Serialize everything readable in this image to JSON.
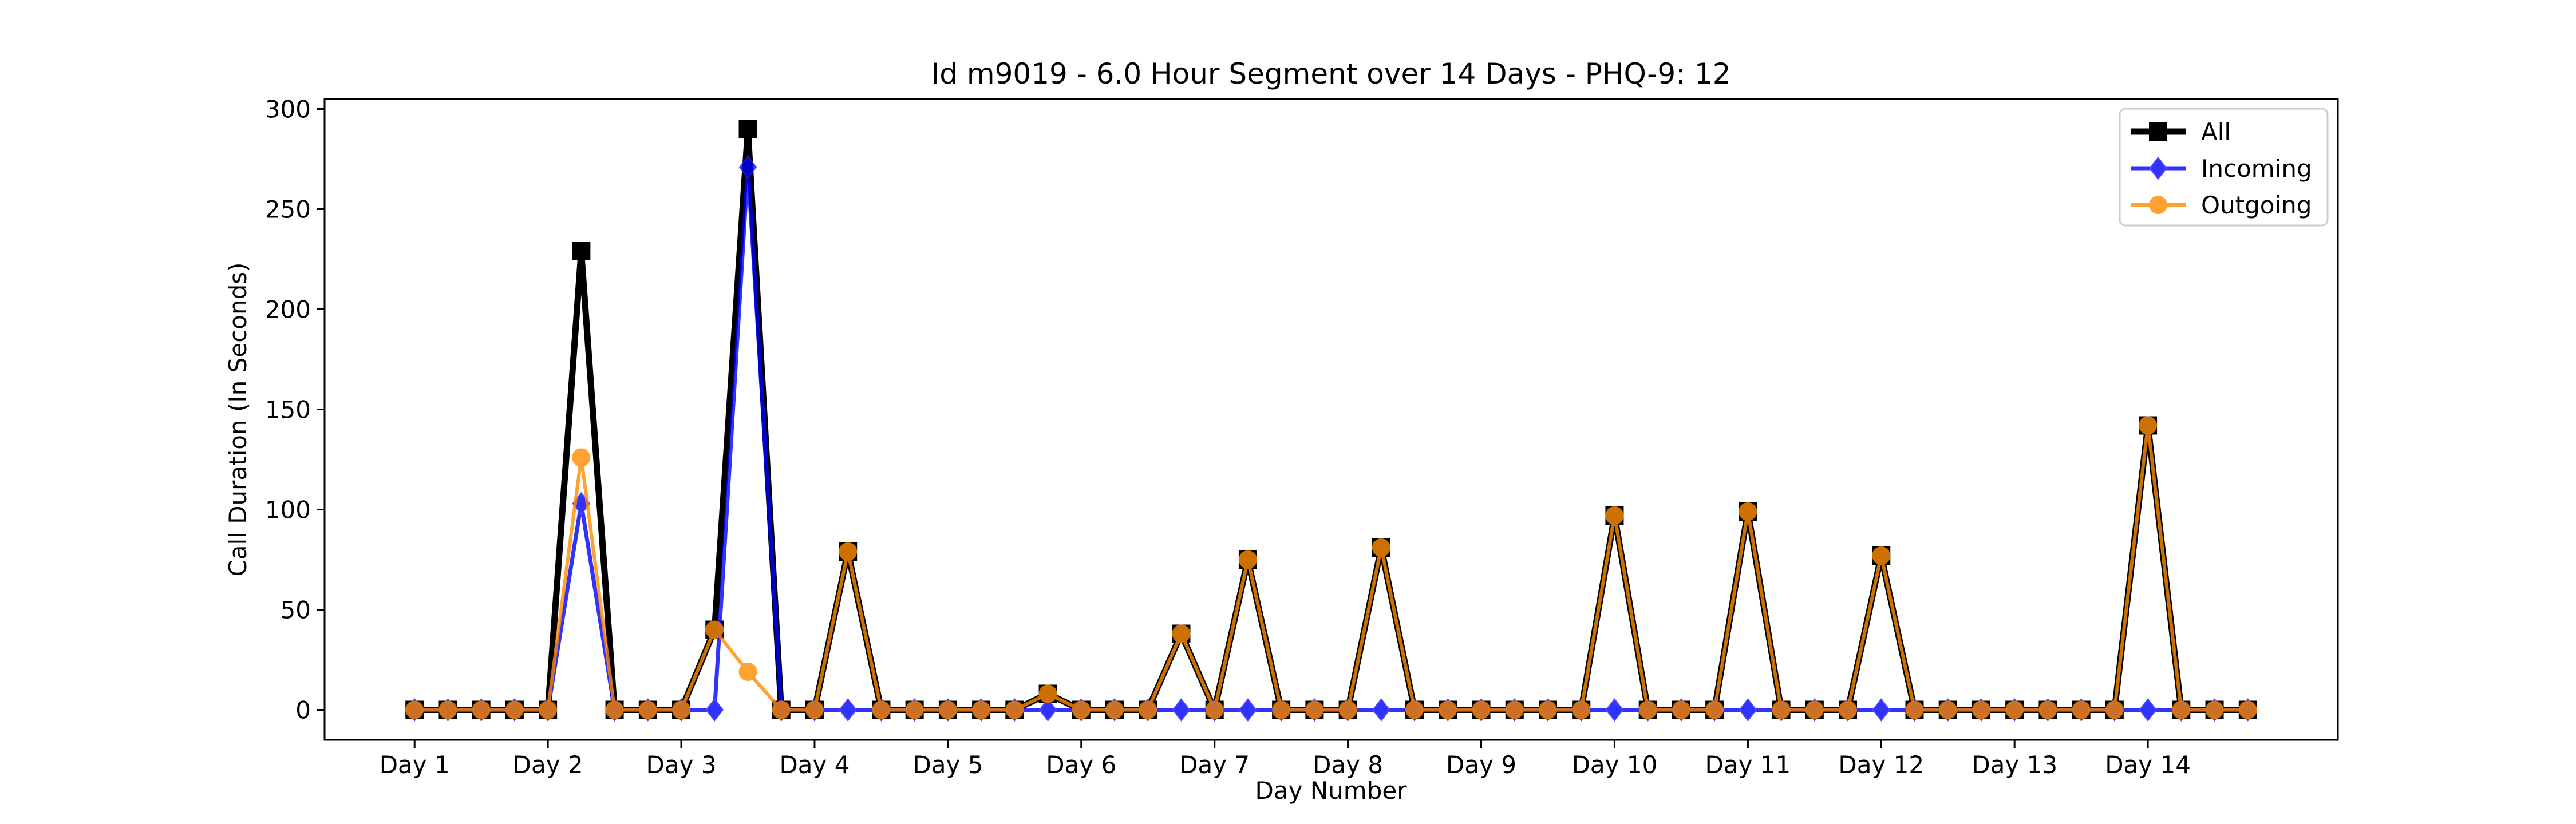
{
  "chart_data": {
    "type": "line",
    "title": "Id m9019 - 6.0 Hour Segment over 14 Days - PHQ-9: 12",
    "xlabel": "Day Number",
    "ylabel": "Call Duration (In Seconds)",
    "ylim": [
      -15,
      305
    ],
    "xlim": [
      -2.7,
      57.7
    ],
    "yticks": [
      0,
      50,
      100,
      150,
      200,
      250,
      300
    ],
    "xticks": [
      {
        "pos": 0,
        "label": "Day 1"
      },
      {
        "pos": 4,
        "label": "Day 2"
      },
      {
        "pos": 8,
        "label": "Day 3"
      },
      {
        "pos": 12,
        "label": "Day 4"
      },
      {
        "pos": 16,
        "label": "Day 5"
      },
      {
        "pos": 20,
        "label": "Day 6"
      },
      {
        "pos": 24,
        "label": "Day 7"
      },
      {
        "pos": 28,
        "label": "Day 8"
      },
      {
        "pos": 32,
        "label": "Day 9"
      },
      {
        "pos": 36,
        "label": "Day 10"
      },
      {
        "pos": 40,
        "label": "Day 11"
      },
      {
        "pos": 44,
        "label": "Day 12"
      },
      {
        "pos": 48,
        "label": "Day 13"
      },
      {
        "pos": 52,
        "label": "Day 14"
      }
    ],
    "legend_position": "top-right",
    "series": [
      {
        "name": "All",
        "color": "#000000",
        "marker": "square",
        "values": [
          0,
          0,
          0,
          0,
          0,
          229,
          0,
          0,
          0,
          40,
          290,
          0,
          0,
          79,
          0,
          0,
          0,
          0,
          0,
          8,
          0,
          0,
          0,
          38,
          0,
          75,
          0,
          0,
          0,
          81,
          0,
          0,
          0,
          0,
          0,
          0,
          97,
          0,
          0,
          0,
          99,
          0,
          0,
          0,
          77,
          0,
          0,
          0,
          0,
          0,
          0,
          0,
          142,
          0,
          0,
          0
        ]
      },
      {
        "name": "Incoming",
        "color": "#0000ff",
        "marker": "diamond",
        "values": [
          0,
          0,
          0,
          0,
          0,
          103,
          0,
          0,
          0,
          0,
          271,
          0,
          0,
          0,
          0,
          0,
          0,
          0,
          0,
          0,
          0,
          0,
          0,
          0,
          0,
          0,
          0,
          0,
          0,
          0,
          0,
          0,
          0,
          0,
          0,
          0,
          0,
          0,
          0,
          0,
          0,
          0,
          0,
          0,
          0,
          0,
          0,
          0,
          0,
          0,
          0,
          0,
          0,
          0,
          0,
          0
        ]
      },
      {
        "name": "Outgoing",
        "color": "#ff8c00",
        "marker": "circle",
        "values": [
          0,
          0,
          0,
          0,
          0,
          126,
          0,
          0,
          0,
          40,
          19,
          0,
          0,
          79,
          0,
          0,
          0,
          0,
          0,
          8,
          0,
          0,
          0,
          38,
          0,
          75,
          0,
          0,
          0,
          81,
          0,
          0,
          0,
          0,
          0,
          0,
          97,
          0,
          0,
          0,
          99,
          0,
          0,
          0,
          77,
          0,
          0,
          0,
          0,
          0,
          0,
          0,
          142,
          0,
          0,
          0
        ]
      }
    ]
  }
}
